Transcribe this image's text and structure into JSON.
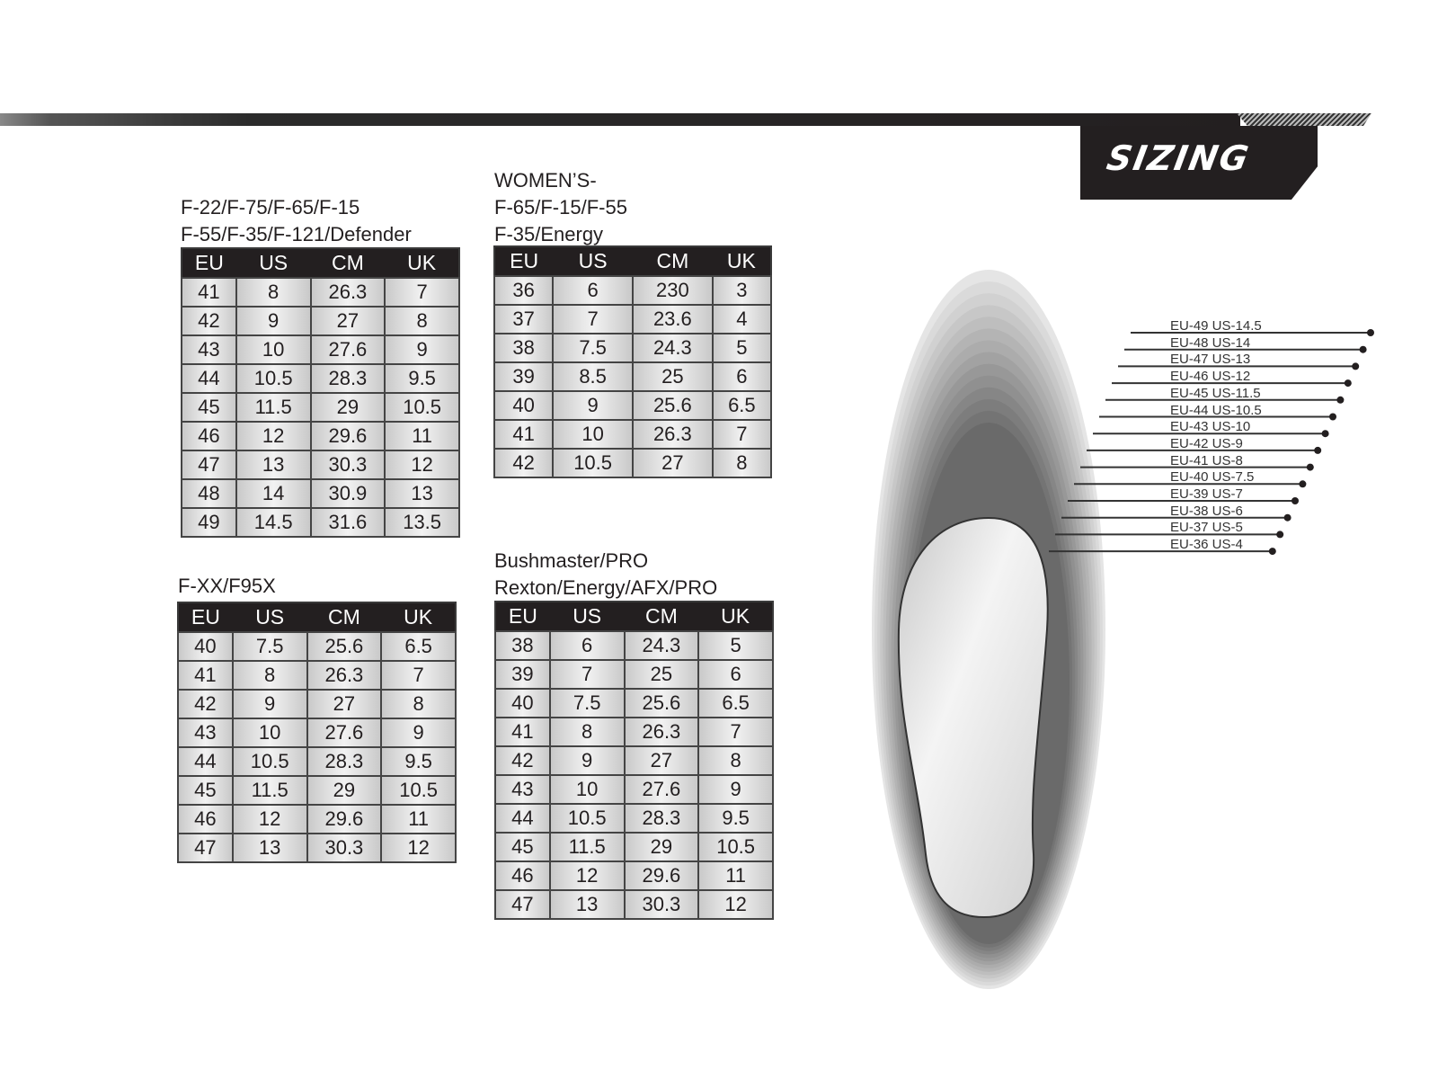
{
  "banner": {
    "title": "SIZING"
  },
  "tables": [
    {
      "title": [
        "F-22/F-75/F-65/F-15",
        "F-55/F-35/F-121/Defender"
      ],
      "headers": [
        "EU",
        "US",
        "CM",
        "UK"
      ],
      "rows": [
        [
          "41",
          "8",
          "26.3",
          "7"
        ],
        [
          "42",
          "9",
          "27",
          "8"
        ],
        [
          "43",
          "10",
          "27.6",
          "9"
        ],
        [
          "44",
          "10.5",
          "28.3",
          "9.5"
        ],
        [
          "45",
          "11.5",
          "29",
          "10.5"
        ],
        [
          "46",
          "12",
          "29.6",
          "11"
        ],
        [
          "47",
          "13",
          "30.3",
          "12"
        ],
        [
          "48",
          "14",
          "30.9",
          "13"
        ],
        [
          "49",
          "14.5",
          "31.6",
          "13.5"
        ]
      ]
    },
    {
      "title": [
        "WOMEN’S-",
        "F-65/F-15/F-55",
        "F-35/Energy"
      ],
      "headers": [
        "EU",
        "US",
        "CM",
        "UK"
      ],
      "rows": [
        [
          "36",
          "6",
          "230",
          "3"
        ],
        [
          "37",
          "7",
          "23.6",
          "4"
        ],
        [
          "38",
          "7.5",
          "24.3",
          "5"
        ],
        [
          "39",
          "8.5",
          "25",
          "6"
        ],
        [
          "40",
          "9",
          "25.6",
          "6.5"
        ],
        [
          "41",
          "10",
          "26.3",
          "7"
        ],
        [
          "42",
          "10.5",
          "27",
          "8"
        ]
      ]
    },
    {
      "title": [
        "F-XX/F95X"
      ],
      "headers": [
        "EU",
        "US",
        "CM",
        "UK"
      ],
      "rows": [
        [
          "40",
          "7.5",
          "25.6",
          "6.5"
        ],
        [
          "41",
          "8",
          "26.3",
          "7"
        ],
        [
          "42",
          "9",
          "27",
          "8"
        ],
        [
          "43",
          "10",
          "27.6",
          "9"
        ],
        [
          "44",
          "10.5",
          "28.3",
          "9.5"
        ],
        [
          "45",
          "11.5",
          "29",
          "10.5"
        ],
        [
          "46",
          "12",
          "29.6",
          "11"
        ],
        [
          "47",
          "13",
          "30.3",
          "12"
        ]
      ]
    },
    {
      "title": [
        "Bushmaster/PRO",
        "Rexton/Energy/AFX/PRO"
      ],
      "headers": [
        "EU",
        "US",
        "CM",
        "UK"
      ],
      "rows": [
        [
          "38",
          "6",
          "24.3",
          "5"
        ],
        [
          "39",
          "7",
          "25",
          "6"
        ],
        [
          "40",
          "7.5",
          "25.6",
          "6.5"
        ],
        [
          "41",
          "8",
          "26.3",
          "7"
        ],
        [
          "42",
          "9",
          "27",
          "8"
        ],
        [
          "43",
          "10",
          "27.6",
          "9"
        ],
        [
          "44",
          "10.5",
          "28.3",
          "9.5"
        ],
        [
          "45",
          "11.5",
          "29",
          "10.5"
        ],
        [
          "46",
          "12",
          "29.6",
          "11"
        ],
        [
          "47",
          "13",
          "30.3",
          "12"
        ]
      ]
    }
  ],
  "foot_labels": [
    "EU-49  US-14.5",
    "EU-48  US-14",
    "EU-47 US-13",
    "EU-46  US-12",
    "EU-45  US-11.5",
    "EU-44  US-10.5",
    "EU-43  US-10",
    "EU-42  US-9",
    "EU-41  US-8",
    "EU-40  US-7.5",
    "EU-39  US-7",
    "EU-38  US-6",
    "EU-37  US-5",
    "EU-36  US-4"
  ]
}
